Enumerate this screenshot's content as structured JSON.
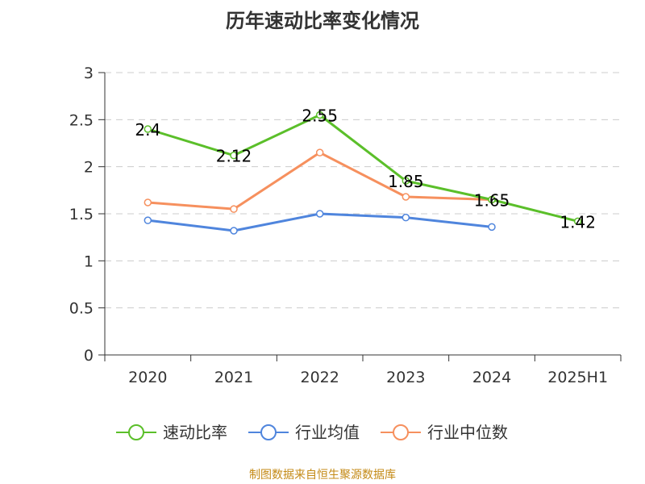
{
  "title": "历年速动比率变化情况",
  "source": "制图数据来自恒生聚源数据库",
  "chart_data": {
    "type": "line",
    "title": "历年速动比率变化情况",
    "xlabel": "",
    "ylabel": "",
    "categories": [
      "2020",
      "2021",
      "2022",
      "2023",
      "2024",
      "2025H1"
    ],
    "ylim": [
      0,
      3
    ],
    "yticks": [
      0,
      0.5,
      1,
      1.5,
      2,
      2.5,
      3
    ],
    "grid": "horizontal-dashed",
    "legend_position": "bottom",
    "series": [
      {
        "name": "速动比率",
        "color": "#5bbf2a",
        "values": [
          2.4,
          2.12,
          2.55,
          1.85,
          1.65,
          1.42
        ],
        "labels": [
          "2.4",
          "2.12",
          "2.55",
          "1.85",
          "1.65",
          "1.42"
        ]
      },
      {
        "name": "行业均值",
        "color": "#4f85dd",
        "values": [
          1.43,
          1.32,
          1.5,
          1.46,
          1.36,
          null
        ]
      },
      {
        "name": "行业中位数",
        "color": "#f6905e",
        "values": [
          1.62,
          1.55,
          2.15,
          1.68,
          1.65,
          null
        ]
      }
    ]
  }
}
